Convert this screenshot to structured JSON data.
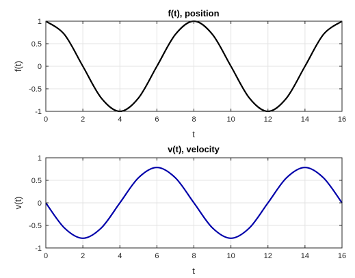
{
  "chart_data": [
    {
      "type": "line",
      "title": "f(t), position",
      "xlabel": "t",
      "ylabel": "f(t)",
      "xlim": [
        0,
        16
      ],
      "ylim": [
        -1,
        1
      ],
      "xticks": [
        0,
        2,
        4,
        6,
        8,
        10,
        12,
        14,
        16
      ],
      "yticks": [
        -1,
        -0.5,
        0,
        0.5,
        1
      ],
      "grid": true,
      "series": [
        {
          "color": "#000000",
          "x": [
            0,
            1,
            2,
            3,
            4,
            5,
            6,
            7,
            8,
            9,
            10,
            11,
            12,
            13,
            14,
            15,
            16
          ],
          "y": [
            1,
            0.707,
            0,
            -0.707,
            -1,
            -0.707,
            0,
            0.707,
            1,
            0.707,
            0,
            -0.707,
            -1,
            -0.707,
            0,
            0.707,
            1
          ]
        }
      ]
    },
    {
      "type": "line",
      "title": "v(t), velocity",
      "xlabel": "t",
      "ylabel": "v(t)",
      "xlim": [
        0,
        16
      ],
      "ylim": [
        -1,
        1
      ],
      "xticks": [
        0,
        2,
        4,
        6,
        8,
        10,
        12,
        14,
        16
      ],
      "yticks": [
        -1,
        -0.5,
        0,
        0.5,
        1
      ],
      "grid": true,
      "series": [
        {
          "color": "#0000aa",
          "x": [
            0,
            1,
            2,
            3,
            4,
            5,
            6,
            7,
            8,
            9,
            10,
            11,
            12,
            13,
            14,
            15,
            16
          ],
          "y": [
            0,
            -0.555,
            -0.785,
            -0.555,
            0,
            0.555,
            0.785,
            0.555,
            0,
            -0.555,
            -0.785,
            -0.555,
            0,
            0.555,
            0.785,
            0.555,
            0
          ]
        }
      ]
    }
  ]
}
